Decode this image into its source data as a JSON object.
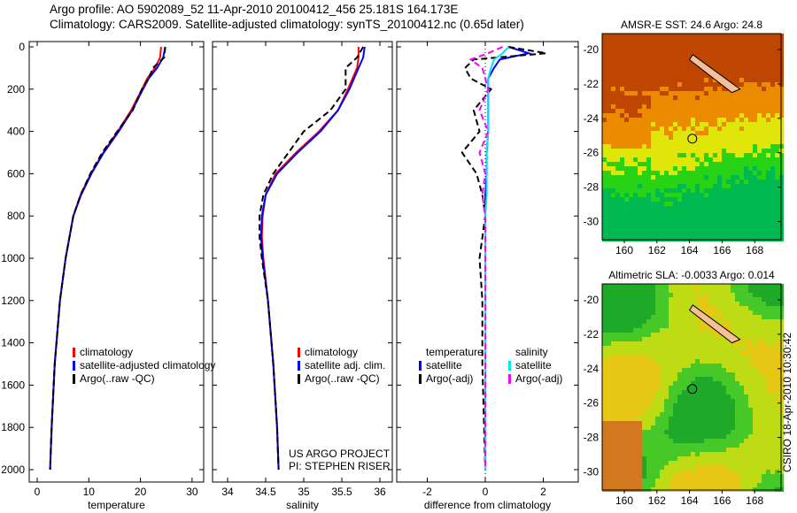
{
  "header": {
    "line1": "Argo profile: AO 5902089_52 11-Apr-2010 20100412_456 25.181S 164.173E",
    "line2": "Climatology: CARS2009. Satellite-adjusted climatology: synTS_20100412.nc (0.65d later)"
  },
  "side_label": "CSIRO 18-Apr-2010 10:30:42",
  "colors": {
    "climatology": "#ff0000",
    "satellite": "#0000ff",
    "argo": "#000000",
    "sal_satellite": "#00e5ee",
    "sal_argo": "#ff00ff"
  },
  "chart_data": [
    {
      "type": "line",
      "xlabel": "temperature",
      "xlim": [
        -2,
        32
      ],
      "ylim": [
        2000,
        0
      ],
      "xticks": [
        "0",
        "10",
        "20",
        "30"
      ],
      "yticks": [
        "0",
        "200",
        "400",
        "600",
        "800",
        "1000",
        "1200",
        "1400",
        "1600",
        "1800",
        "2000"
      ],
      "depth": [
        0,
        50,
        100,
        150,
        200,
        300,
        400,
        500,
        600,
        700,
        800,
        1000,
        1200,
        1500,
        1800,
        2000
      ],
      "series": [
        {
          "name": "climatology",
          "values": [
            24,
            23.8,
            22.8,
            21.3,
            20.3,
            18.2,
            15.6,
            12.8,
            10.4,
            8.4,
            7,
            5.5,
            4.4,
            3.4,
            2.8,
            2.5
          ]
        },
        {
          "name": "satellite-adjusted climatology",
          "values": [
            24.8,
            24.4,
            23.2,
            21.6,
            20.5,
            18.4,
            15.8,
            12.9,
            10.5,
            8.5,
            7,
            5.5,
            4.4,
            3.4,
            2.8,
            2.5
          ]
        },
        {
          "name": "Argo(..raw -QC)",
          "values": [
            24.8,
            24.6,
            22.4,
            21.6,
            20.3,
            18.5,
            15.5,
            12.6,
            10.3,
            8.4,
            7,
            5.5,
            4.4,
            3.4,
            2.8,
            2.5
          ]
        }
      ],
      "legend": [
        "climatology",
        "satellite-adjusted climatology",
        "Argo(..raw -QC)"
      ]
    },
    {
      "type": "line",
      "xlabel": "salinity",
      "xlim": [
        33.8,
        36.05
      ],
      "ylim": [
        2000,
        0
      ],
      "xticks": [
        "34",
        "34.5",
        "35",
        "35.5",
        "36"
      ],
      "depth": [
        0,
        50,
        100,
        200,
        300,
        400,
        500,
        600,
        700,
        800,
        900,
        1000,
        1200,
        1500,
        1800,
        2000
      ],
      "series": [
        {
          "name": "climatology",
          "values": [
            35.72,
            35.72,
            35.7,
            35.58,
            35.45,
            35.2,
            34.9,
            34.63,
            34.5,
            34.46,
            34.45,
            34.47,
            34.53,
            34.6,
            34.65,
            34.67
          ]
        },
        {
          "name": "satellite adj. clim.",
          "values": [
            35.8,
            35.78,
            35.72,
            35.6,
            35.45,
            35.22,
            34.92,
            34.65,
            34.5,
            34.45,
            34.44,
            34.46,
            34.53,
            34.6,
            34.65,
            34.67
          ]
        },
        {
          "name": "Argo(..raw -QC)",
          "values": [
            35.78,
            35.7,
            35.55,
            35.55,
            35.35,
            35.0,
            34.8,
            34.6,
            34.47,
            34.42,
            34.42,
            34.45,
            34.53,
            34.6,
            34.65,
            34.67
          ]
        }
      ],
      "legend": [
        "climatology",
        "satellite adj. clim.",
        "Argo(..raw -QC)"
      ],
      "annotation": [
        "US ARGO PROJECT",
        "PI: STEPHEN RISER"
      ]
    },
    {
      "type": "line",
      "xlabel": "difference from climatology",
      "xlim": [
        -3.2,
        3.2
      ],
      "ylim": [
        2000,
        0
      ],
      "xticks": [
        "-2",
        "0",
        "2"
      ],
      "depth": [
        0,
        30,
        60,
        100,
        150,
        200,
        300,
        400,
        500,
        600,
        700,
        800,
        1000,
        1200,
        1500,
        2000
      ],
      "series": [
        {
          "name": "temperature satellite",
          "values": [
            0.8,
            1.5,
            0.5,
            0.3,
            0.1,
            0.1,
            0.1,
            0.1,
            0.05,
            0.05,
            0,
            0,
            0,
            0,
            0,
            0
          ]
        },
        {
          "name": "temperature Argo(-adj)",
          "values": [
            0.8,
            2.1,
            -0.4,
            -0.7,
            -0.5,
            0.2,
            -0.4,
            -0.2,
            -0.8,
            -0.3,
            -0.1,
            0,
            -0.2,
            -0.1,
            -0.1,
            0
          ]
        },
        {
          "name": "salinity satellite",
          "values": [
            0.8,
            0.6,
            0.3,
            0.2,
            0.1,
            0.1,
            0.1,
            0.1,
            0.05,
            0.05,
            0.05,
            0,
            0,
            0,
            0,
            0
          ]
        },
        {
          "name": "salinity Argo(-adj)",
          "values": [
            0.6,
            0.1,
            -0.5,
            -0.1,
            0,
            0.1,
            -0.2,
            0.1,
            -0.2,
            0,
            -0.1,
            0,
            0,
            0,
            0,
            0
          ]
        }
      ],
      "legend_headers": [
        "temperature",
        "salinity"
      ],
      "legend": [
        "satellite",
        "Argo(-adj)",
        "satellite",
        "Argo(-adj)"
      ]
    },
    {
      "type": "heatmap",
      "title": "AMSR-E SST: 24.6  Argo: 24.8",
      "xticks": [
        "160",
        "162",
        "164",
        "166",
        "168"
      ],
      "yticks": [
        "-20",
        "-22",
        "-24",
        "-26",
        "-28",
        "-30"
      ],
      "xlim": [
        158.6,
        169.6
      ],
      "ylim": [
        -31.1,
        -19.3
      ],
      "marker": [
        164.173,
        -25.181
      ]
    },
    {
      "type": "heatmap",
      "title": "Altimetric SLA: -0.0033  Argo: 0.014",
      "xticks": [
        "160",
        "162",
        "164",
        "166",
        "168"
      ],
      "yticks": [
        "-20",
        "-22",
        "-24",
        "-26",
        "-28",
        "-30"
      ],
      "xlim": [
        158.6,
        169.6
      ],
      "ylim": [
        -31.1,
        -19.1
      ],
      "marker": [
        164.173,
        -25.181
      ]
    }
  ]
}
